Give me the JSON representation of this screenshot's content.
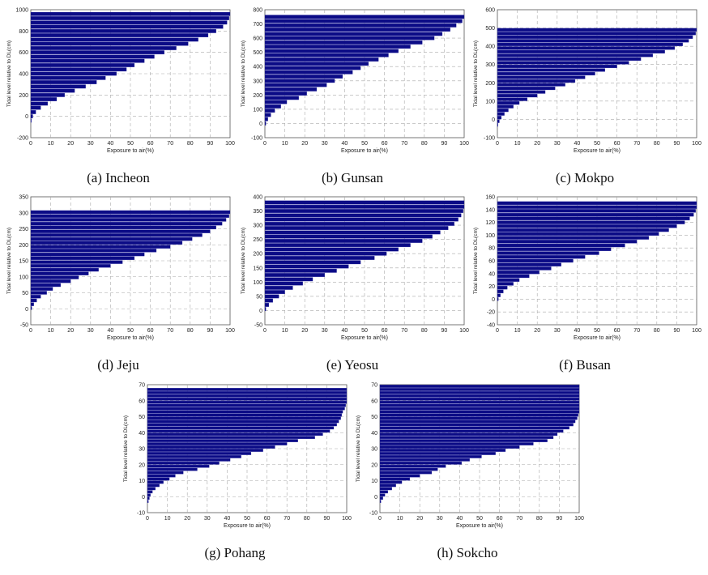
{
  "chart_data": [
    {
      "id": "a",
      "type": "bar",
      "orientation": "horizontal",
      "caption": "(a) Incheon",
      "xlabel": "Exposure to air(%)",
      "ylabel": "Tidal level relative to DL(cm)",
      "xlim": [
        0,
        100
      ],
      "ylim": [
        -200,
        1000
      ],
      "xticks": [
        0,
        10,
        20,
        30,
        40,
        50,
        60,
        70,
        80,
        90,
        100
      ],
      "yticks": [
        -200,
        0,
        200,
        400,
        600,
        800,
        1000
      ],
      "bar_color": "#0b0b86",
      "grid": true,
      "y": [
        -40,
        0,
        40,
        80,
        120,
        160,
        200,
        240,
        280,
        320,
        360,
        400,
        440,
        480,
        520,
        560,
        600,
        640,
        680,
        720,
        760,
        800,
        840,
        880,
        920,
        960
      ],
      "values": [
        0.3,
        1,
        2.5,
        5,
        8.5,
        13,
        17,
        22,
        27.5,
        33,
        37.5,
        43,
        48,
        52,
        57,
        62,
        67,
        73,
        79,
        84,
        89,
        93,
        96.5,
        98.5,
        99.5,
        100
      ]
    },
    {
      "id": "b",
      "type": "bar",
      "orientation": "horizontal",
      "caption": "(b) Gunsan",
      "xlabel": "Exposure to air(%)",
      "ylabel": "Tidal level relative to DL(cm)",
      "xlim": [
        0,
        100
      ],
      "ylim": [
        -100,
        800
      ],
      "xticks": [
        0,
        10,
        20,
        30,
        40,
        50,
        60,
        70,
        80,
        90,
        100
      ],
      "yticks": [
        -100,
        0,
        100,
        200,
        300,
        400,
        500,
        600,
        700,
        800
      ],
      "bar_color": "#0b0b86",
      "grid": true,
      "y": [
        0,
        30,
        60,
        90,
        120,
        150,
        180,
        210,
        240,
        270,
        300,
        330,
        360,
        390,
        420,
        450,
        480,
        510,
        540,
        570,
        600,
        630,
        660,
        690,
        720,
        750
      ],
      "values": [
        0.5,
        1.5,
        3,
        5,
        8,
        11,
        17,
        21,
        26,
        31,
        35,
        39,
        44,
        48,
        52,
        57,
        62,
        67,
        73,
        79,
        85,
        89,
        93,
        96,
        99,
        100
      ]
    },
    {
      "id": "c",
      "type": "bar",
      "orientation": "horizontal",
      "caption": "(c) Mokpo",
      "xlabel": "Exposure to air(%)",
      "ylabel": "Tidal level relative to DL(cm)",
      "xlim": [
        0,
        100
      ],
      "ylim": [
        -100,
        600
      ],
      "xticks": [
        0,
        10,
        20,
        30,
        40,
        50,
        60,
        70,
        80,
        90,
        100
      ],
      "yticks": [
        -100,
        0,
        100,
        200,
        300,
        400,
        500,
        600
      ],
      "bar_color": "#0b0b86",
      "grid": true,
      "y": [
        -30,
        -10,
        10,
        30,
        50,
        70,
        90,
        110,
        130,
        150,
        170,
        190,
        210,
        230,
        250,
        270,
        290,
        310,
        330,
        350,
        370,
        390,
        410,
        430,
        450,
        470,
        490
      ],
      "values": [
        0.3,
        1,
        2,
        3.5,
        5.5,
        8,
        11,
        15,
        20,
        24,
        29,
        34,
        39,
        44,
        49,
        54,
        60,
        66,
        72,
        78,
        84,
        89,
        93,
        96,
        98,
        99.5,
        100
      ]
    },
    {
      "id": "d",
      "type": "bar",
      "orientation": "horizontal",
      "caption": "(d) Jeju",
      "xlabel": "Exposure to air(%)",
      "ylabel": "Tidal level relative to DL(cm)",
      "xlim": [
        0,
        100
      ],
      "ylim": [
        -50,
        350
      ],
      "xticks": [
        0,
        10,
        20,
        30,
        40,
        50,
        60,
        70,
        80,
        90,
        100
      ],
      "yticks": [
        -50,
        0,
        50,
        100,
        150,
        200,
        250,
        300,
        350
      ],
      "bar_color": "#0b0b86",
      "grid": true,
      "y": [
        2,
        14,
        26,
        38,
        50,
        62,
        74,
        86,
        98,
        110,
        122,
        134,
        146,
        158,
        170,
        182,
        194,
        206,
        218,
        230,
        242,
        254,
        266,
        278,
        290,
        302
      ],
      "values": [
        0.5,
        1.5,
        3,
        5,
        8,
        11,
        15,
        20,
        24,
        29,
        34,
        40,
        46,
        52,
        57,
        63,
        70,
        76,
        81,
        86,
        90,
        93,
        96,
        98,
        99.5,
        100
      ]
    },
    {
      "id": "e",
      "type": "bar",
      "orientation": "horizontal",
      "caption": "(e) Yeosu",
      "xlabel": "Exposure to air(%)",
      "ylabel": "Tidal level relative to DL(cm)",
      "xlim": [
        0,
        100
      ],
      "ylim": [
        -50,
        400
      ],
      "xticks": [
        0,
        10,
        20,
        30,
        40,
        50,
        60,
        70,
        80,
        90,
        100
      ],
      "yticks": [
        -50,
        0,
        50,
        100,
        150,
        200,
        250,
        300,
        350,
        400
      ],
      "bar_color": "#0b0b86",
      "grid": true,
      "y": [
        5,
        20,
        35,
        50,
        65,
        80,
        95,
        110,
        125,
        140,
        155,
        170,
        185,
        200,
        215,
        230,
        245,
        260,
        275,
        290,
        305,
        320,
        335,
        350,
        365,
        380
      ],
      "values": [
        0.5,
        2,
        4,
        7,
        10,
        14,
        19,
        24,
        30,
        36,
        42,
        48,
        55,
        61,
        67,
        73,
        79,
        84,
        88,
        92,
        95,
        97,
        98.5,
        99.5,
        100,
        100
      ]
    },
    {
      "id": "f",
      "type": "bar",
      "orientation": "horizontal",
      "caption": "(f) Busan",
      "xlabel": "Exposure to air(%)",
      "ylabel": "Tidal level relative to DL(cm)",
      "xlim": [
        0,
        100
      ],
      "ylim": [
        -40,
        160
      ],
      "xticks": [
        0,
        10,
        20,
        30,
        40,
        50,
        60,
        70,
        80,
        90,
        100
      ],
      "yticks": [
        -40,
        -20,
        0,
        20,
        40,
        60,
        80,
        100,
        120,
        140,
        160
      ],
      "bar_color": "#0b0b86",
      "grid": true,
      "y": [
        0,
        6,
        12,
        18,
        24,
        30,
        36,
        42,
        48,
        54,
        60,
        66,
        72,
        78,
        84,
        90,
        96,
        102,
        108,
        114,
        120,
        126,
        132,
        138,
        144,
        150
      ],
      "values": [
        0.5,
        1.5,
        3,
        5,
        8,
        11,
        16,
        21,
        27,
        32,
        38,
        44,
        51,
        57,
        64,
        70,
        76,
        81,
        86,
        90,
        94,
        96.5,
        98.5,
        99.5,
        100,
        100
      ]
    },
    {
      "id": "g",
      "type": "bar",
      "orientation": "horizontal",
      "caption": "(g) Pohang",
      "xlabel": "Exposure to air(%)",
      "ylabel": "Tidal level relative to DL(cm)",
      "xlim": [
        0,
        100
      ],
      "ylim": [
        -10,
        70
      ],
      "xticks": [
        0,
        10,
        20,
        30,
        40,
        50,
        60,
        70,
        80,
        90,
        100
      ],
      "yticks": [
        -10,
        0,
        10,
        20,
        30,
        40,
        50,
        60,
        70
      ],
      "bar_color": "#0b0b86",
      "grid": true,
      "y": [
        -3,
        -1,
        1,
        3,
        5,
        7,
        9,
        11,
        13,
        15,
        17,
        19,
        21,
        23,
        25,
        27,
        29,
        31,
        33,
        35,
        37,
        39,
        41,
        43,
        45,
        47,
        49,
        51,
        53,
        55,
        57,
        59,
        61,
        63,
        65,
        67
      ],
      "values": [
        0.5,
        1,
        1.5,
        2.5,
        4,
        6,
        8,
        11,
        14,
        18,
        25,
        31,
        36,
        41.5,
        47,
        52,
        58,
        64,
        70,
        75.5,
        84,
        88,
        91.5,
        93.5,
        95,
        96,
        97,
        97.5,
        98,
        99,
        99.5,
        100,
        100,
        100,
        100,
        100
      ]
    },
    {
      "id": "h",
      "type": "bar",
      "orientation": "horizontal",
      "caption": "(h) Sokcho",
      "xlabel": "Exposure to air(%)",
      "ylabel": "Tidal level relative to DL(cm)",
      "xlim": [
        0,
        100
      ],
      "ylim": [
        -10,
        70
      ],
      "xticks": [
        0,
        10,
        20,
        30,
        40,
        50,
        60,
        70,
        80,
        90,
        100
      ],
      "yticks": [
        -10,
        0,
        10,
        20,
        30,
        40,
        50,
        60,
        70
      ],
      "bar_color": "#0b0b86",
      "grid": true,
      "y": [
        -3,
        -1,
        1,
        3,
        5,
        7,
        9,
        11,
        13,
        15,
        17,
        19,
        21,
        23,
        25,
        27,
        29,
        31,
        33,
        35,
        37,
        39,
        41,
        43,
        45,
        47,
        49,
        51,
        53,
        55,
        57,
        59,
        61,
        63,
        65,
        67,
        69
      ],
      "values": [
        0.5,
        1.5,
        2.5,
        4,
        6,
        8,
        11,
        15,
        20,
        26,
        29,
        33,
        41,
        45,
        51,
        58,
        63,
        70,
        77,
        84,
        87,
        89,
        92,
        95,
        97,
        98,
        99,
        99.5,
        100,
        100,
        100,
        100,
        100,
        100,
        100,
        100,
        100
      ]
    }
  ]
}
